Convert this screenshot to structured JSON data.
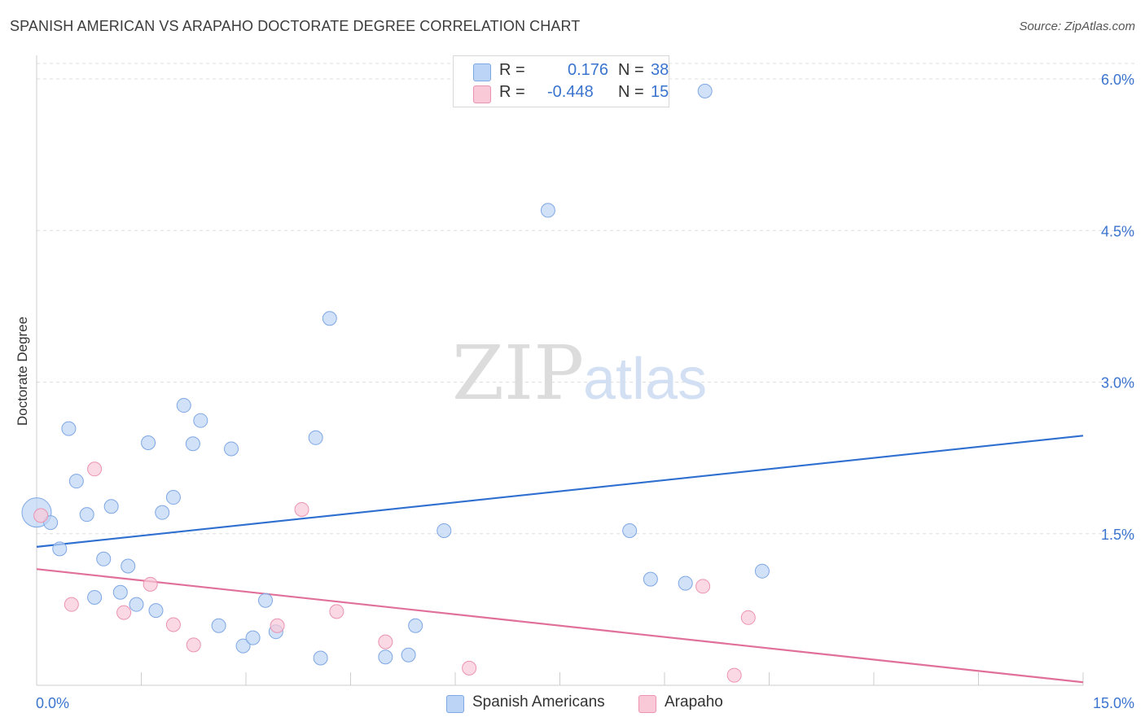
{
  "title": "SPANISH AMERICAN VS ARAPAHO DOCTORATE DEGREE CORRELATION CHART",
  "source": "Source: ZipAtlas.com",
  "watermark": {
    "zip": "ZIP",
    "atlas": "atlas"
  },
  "legend_top": {
    "rows": [
      {
        "r_label": "R =",
        "r_value": "0.176",
        "n_label": "N =",
        "n_value": "38"
      },
      {
        "r_label": "R =",
        "r_value": "-0.448",
        "n_label": "N =",
        "n_value": "15"
      }
    ]
  },
  "legend_bottom": {
    "items": [
      "Spanish Americans",
      "Arapaho"
    ]
  },
  "colors": {
    "blue_fill": "#bcd4f5",
    "blue_stroke": "#7fa7e4",
    "blue_line": "#2f6fd0",
    "pink_fill": "#f9c9d8",
    "pink_stroke": "#eb93b1",
    "pink_line": "#e0709a",
    "tick_label": "#3b74cf"
  },
  "chart_data": {
    "type": "scatter",
    "title": "SPANISH AMERICAN VS ARAPAHO DOCTORATE DEGREE CORRELATION CHART",
    "xlabel": "",
    "ylabel": "Doctorate Degree",
    "xlim": [
      0,
      15
    ],
    "ylim": [
      0,
      6.2
    ],
    "x_tick_labels": [
      "0.0%",
      "15.0%"
    ],
    "y_ticks": [
      1.5,
      3.0,
      4.5,
      6.0
    ],
    "y_tick_labels": [
      "1.5%",
      "3.0%",
      "4.5%",
      "6.0%"
    ],
    "grid": true,
    "legend_position": "bottom",
    "series": [
      {
        "name": "Spanish Americans",
        "color": "blue",
        "r": 0.176,
        "n": 38,
        "trend": {
          "x": [
            0,
            15
          ],
          "y": [
            1.37,
            2.47
          ]
        },
        "points": [
          {
            "x": 0.0,
            "y": 1.71,
            "big": true
          },
          {
            "x": 0.2,
            "y": 1.61
          },
          {
            "x": 0.33,
            "y": 1.35
          },
          {
            "x": 0.46,
            "y": 2.54
          },
          {
            "x": 0.57,
            "y": 2.02
          },
          {
            "x": 0.72,
            "y": 1.69
          },
          {
            "x": 0.83,
            "y": 0.87
          },
          {
            "x": 0.96,
            "y": 1.25
          },
          {
            "x": 1.07,
            "y": 1.77
          },
          {
            "x": 1.2,
            "y": 0.92
          },
          {
            "x": 1.31,
            "y": 1.18
          },
          {
            "x": 1.43,
            "y": 0.8
          },
          {
            "x": 1.6,
            "y": 2.4
          },
          {
            "x": 1.71,
            "y": 0.74
          },
          {
            "x": 1.8,
            "y": 1.71
          },
          {
            "x": 1.96,
            "y": 1.86
          },
          {
            "x": 2.11,
            "y": 2.77
          },
          {
            "x": 2.24,
            "y": 2.39
          },
          {
            "x": 2.35,
            "y": 2.62
          },
          {
            "x": 2.61,
            "y": 0.59
          },
          {
            "x": 2.79,
            "y": 2.34
          },
          {
            "x": 2.96,
            "y": 0.39
          },
          {
            "x": 3.1,
            "y": 0.47
          },
          {
            "x": 3.28,
            "y": 0.84
          },
          {
            "x": 3.43,
            "y": 0.53
          },
          {
            "x": 4.0,
            "y": 2.45
          },
          {
            "x": 4.07,
            "y": 0.27
          },
          {
            "x": 4.2,
            "y": 3.63
          },
          {
            "x": 5.0,
            "y": 0.28
          },
          {
            "x": 5.33,
            "y": 0.3
          },
          {
            "x": 5.43,
            "y": 0.59
          },
          {
            "x": 5.84,
            "y": 1.53
          },
          {
            "x": 7.33,
            "y": 4.7
          },
          {
            "x": 8.5,
            "y": 1.53
          },
          {
            "x": 8.8,
            "y": 1.05
          },
          {
            "x": 9.3,
            "y": 1.01
          },
          {
            "x": 9.58,
            "y": 5.88
          },
          {
            "x": 10.4,
            "y": 1.13
          }
        ]
      },
      {
        "name": "Arapaho",
        "color": "pink",
        "r": -0.448,
        "n": 15,
        "trend": {
          "x": [
            0,
            15
          ],
          "y": [
            1.15,
            0.03
          ]
        },
        "points": [
          {
            "x": 0.06,
            "y": 1.68
          },
          {
            "x": 0.5,
            "y": 0.8
          },
          {
            "x": 0.83,
            "y": 2.14
          },
          {
            "x": 1.25,
            "y": 0.72
          },
          {
            "x": 1.63,
            "y": 1.0
          },
          {
            "x": 1.96,
            "y": 0.6
          },
          {
            "x": 2.25,
            "y": 0.4
          },
          {
            "x": 3.45,
            "y": 0.59
          },
          {
            "x": 3.8,
            "y": 1.74
          },
          {
            "x": 4.3,
            "y": 0.73
          },
          {
            "x": 5.0,
            "y": 0.43
          },
          {
            "x": 6.2,
            "y": 0.17
          },
          {
            "x": 9.55,
            "y": 0.98
          },
          {
            "x": 10.0,
            "y": 0.1
          },
          {
            "x": 10.2,
            "y": 0.67
          }
        ]
      }
    ]
  }
}
